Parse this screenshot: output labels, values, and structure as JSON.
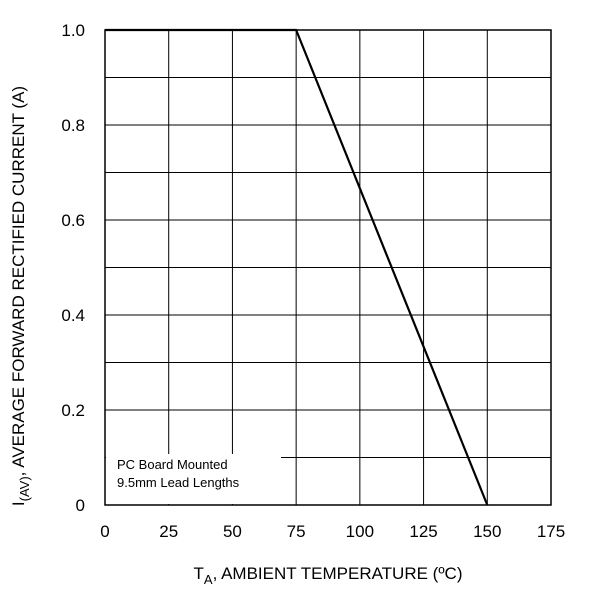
{
  "chart_data": {
    "type": "line",
    "title": "",
    "xlabel": {
      "symbol": "T",
      "subscript": "A",
      "rest": ", AMBIENT TEMPERATURE (ºC)"
    },
    "ylabel": {
      "symbol": "I",
      "subscript": "(AV)",
      "rest": ", AVERAGE FORWARD RECTIFIED CURRENT (A)"
    },
    "xlim": [
      0,
      175
    ],
    "ylim": [
      0,
      1.0
    ],
    "xticks": [
      0,
      25,
      50,
      75,
      100,
      125,
      150,
      175
    ],
    "xtick_labels": [
      "0",
      "25",
      "50",
      "75",
      "100",
      "125",
      "150",
      "175"
    ],
    "yticks": [
      0,
      0.2,
      0.4,
      0.6,
      0.8,
      1.0
    ],
    "ytick_labels": [
      "0",
      "0.2",
      "0.4",
      "0.6",
      "0.8",
      "1.0"
    ],
    "x_minor_step": 25,
    "y_minor_step": 0.1,
    "grid": true,
    "series": [
      {
        "x": [
          0,
          75,
          150
        ],
        "y": [
          1.0,
          1.0,
          0
        ]
      }
    ],
    "annotation": {
      "lines": [
        "PC Board Mounted",
        "9.5mm Lead Lengths"
      ]
    },
    "colors": {
      "line": "#000000",
      "grid": "#000000",
      "background": "#ffffff"
    }
  }
}
